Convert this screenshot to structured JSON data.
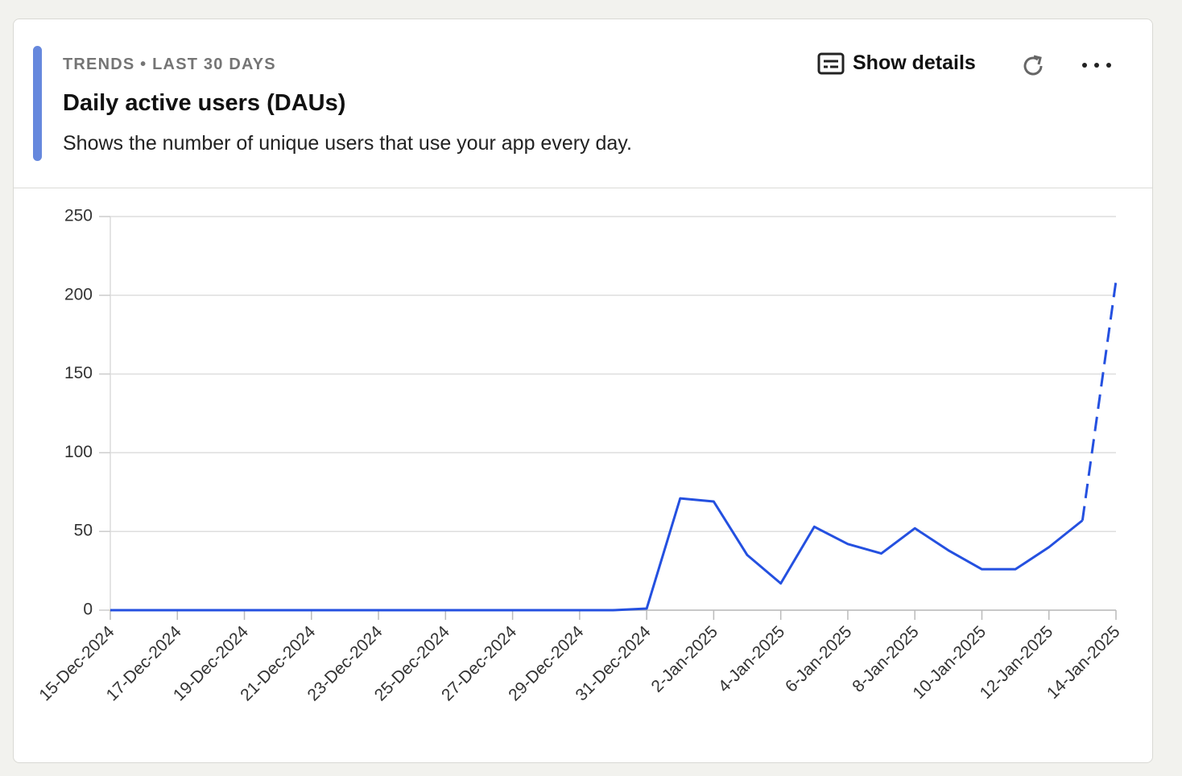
{
  "header": {
    "eyebrow": "TRENDS • LAST 30 DAYS",
    "title": "Daily active users (DAUs)",
    "subtitle": "Shows the number of unique users that use your app every day.",
    "show_details": "Show details"
  },
  "chart_data": {
    "type": "line",
    "categories": [
      "15-Dec-2024",
      null,
      "17-Dec-2024",
      null,
      "19-Dec-2024",
      null,
      "21-Dec-2024",
      null,
      "23-Dec-2024",
      null,
      "25-Dec-2024",
      null,
      "27-Dec-2024",
      null,
      "29-Dec-2024",
      null,
      "31-Dec-2024",
      null,
      "2-Jan-2025",
      null,
      "4-Jan-2025",
      null,
      "6-Jan-2025",
      null,
      "8-Jan-2025",
      null,
      "10-Jan-2025",
      null,
      "12-Jan-2025",
      null,
      "14-Jan-2025"
    ],
    "series": [
      {
        "name": "DAUs",
        "color": "#2450e0",
        "values": [
          0,
          0,
          0,
          0,
          0,
          0,
          0,
          0,
          0,
          0,
          0,
          0,
          0,
          0,
          0,
          0,
          1,
          71,
          69,
          35,
          17,
          53,
          42,
          36,
          52,
          38,
          26,
          26,
          40,
          57,
          209
        ]
      }
    ],
    "last_segment_style": "dashed",
    "ylim": [
      0,
      250
    ],
    "yticks": [
      0,
      50,
      100,
      150,
      200,
      250
    ],
    "grid": true
  }
}
